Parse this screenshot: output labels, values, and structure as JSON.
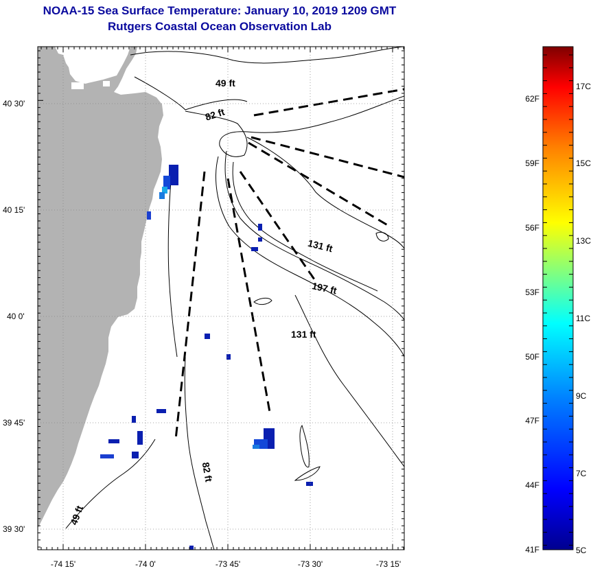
{
  "title": {
    "line1": "NOAA-15 Sea Surface Temperature:  January 10, 2019 1209 GMT",
    "line2": "Rutgers Coastal Ocean Observation Lab"
  },
  "axes": {
    "lat_labels": [
      "40 30'",
      "40 15'",
      "40 0'",
      "39 45'",
      "39 30'"
    ],
    "lon_labels": [
      "-74 15'",
      "-74 0'",
      "-73 45'",
      "-73 30'",
      "-73 15'"
    ]
  },
  "depth_labels": [
    "49 ft",
    "82 ft",
    "131 ft",
    "197 ft",
    "131 ft",
    "82 ft",
    "49 ft"
  ],
  "colorbar": {
    "fahrenheit": [
      "62F",
      "59F",
      "56F",
      "53F",
      "50F",
      "47F",
      "44F",
      "41F"
    ],
    "celsius": [
      "17C",
      "15C",
      "13C",
      "11C",
      "9C",
      "7C",
      "5C"
    ],
    "colors": [
      "#7f0000",
      "#ff0000",
      "#ff8000",
      "#ffff00",
      "#80ff80",
      "#00ffff",
      "#0080ff",
      "#0000ff",
      "#00008f"
    ]
  },
  "colors": {
    "land": "#b3b3b3",
    "title": "#0a0a9e",
    "cold_pixel": "#0a1fb0"
  }
}
